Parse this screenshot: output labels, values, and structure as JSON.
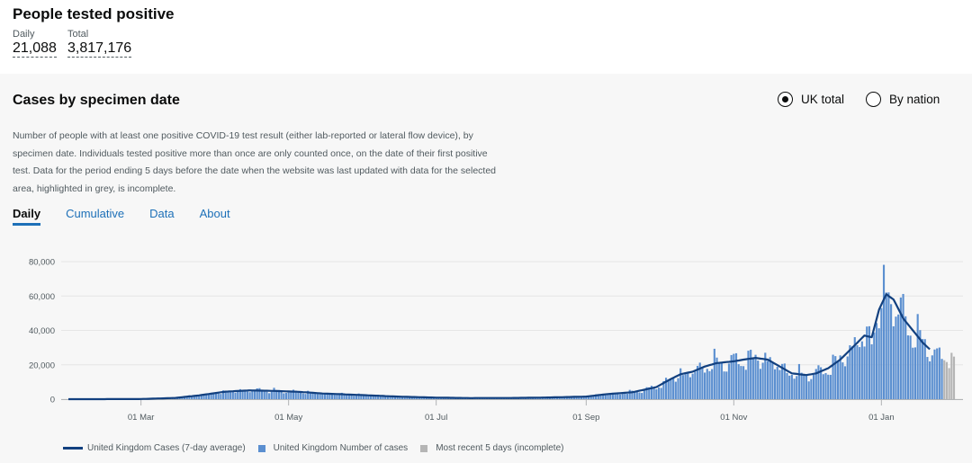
{
  "header": {
    "title": "People tested positive",
    "metrics": [
      {
        "label": "Daily",
        "value": "21,088"
      },
      {
        "label": "Total",
        "value": "3,817,176"
      }
    ]
  },
  "card": {
    "title": "Cases by specimen date",
    "description": "Number of people with at least one positive COVID-19 test result (either lab-reported or lateral flow device), by specimen date. Individuals tested positive more than once are only counted once, on the date of their first positive test. Data for the period ending 5 days before the date when the website was last updated with data for the selected area, highlighted in grey, is incomplete.",
    "radios": [
      {
        "label": "UK total",
        "selected": true
      },
      {
        "label": "By nation",
        "selected": false
      }
    ],
    "tabs": [
      {
        "label": "Daily",
        "active": true
      },
      {
        "label": "Cumulative",
        "active": false
      },
      {
        "label": "Data",
        "active": false
      },
      {
        "label": "About",
        "active": false
      }
    ]
  },
  "colors": {
    "bar": "#5b8fd0",
    "incomplete": "#b5b5b5",
    "line": "#12407f",
    "link": "#1d70b8"
  },
  "chart_data": {
    "type": "bar",
    "x_range": [
      "2020-01-31",
      "2021-01-31"
    ],
    "ylim": [
      0,
      80000
    ],
    "yticks": [
      "0",
      "20,000",
      "40,000",
      "60,000",
      "80,000"
    ],
    "ytick_values": [
      0,
      20000,
      40000,
      60000,
      80000
    ],
    "xticks": [
      {
        "label": "01 Mar",
        "date": "2020-03-01"
      },
      {
        "label": "01 May",
        "date": "2020-05-01"
      },
      {
        "label": "01 Jul",
        "date": "2020-07-01"
      },
      {
        "label": "01 Sep",
        "date": "2020-09-01"
      },
      {
        "label": "01 Nov",
        "date": "2020-11-01"
      },
      {
        "label": "01 Jan",
        "date": "2021-01-01"
      }
    ],
    "grid": true,
    "incomplete_days": 5,
    "series": [
      {
        "name": "United Kingdom Cases (7-day average)",
        "kind": "line"
      },
      {
        "name": "United Kingdom Number of cases",
        "kind": "bar"
      },
      {
        "name": "Most recent 5 days (incomplete)",
        "kind": "bar-incomplete"
      }
    ],
    "anchors": [
      [
        "2020-01-31",
        0
      ],
      [
        "2020-02-29",
        50
      ],
      [
        "2020-03-15",
        700
      ],
      [
        "2020-03-25",
        2200
      ],
      [
        "2020-04-05",
        4400
      ],
      [
        "2020-04-15",
        5100
      ],
      [
        "2020-04-25",
        4800
      ],
      [
        "2020-05-05",
        4300
      ],
      [
        "2020-05-15",
        3300
      ],
      [
        "2020-05-31",
        2400
      ],
      [
        "2020-06-15",
        1500
      ],
      [
        "2020-07-01",
        900
      ],
      [
        "2020-07-15",
        650
      ],
      [
        "2020-08-01",
        700
      ],
      [
        "2020-08-15",
        950
      ],
      [
        "2020-09-01",
        1500
      ],
      [
        "2020-09-10",
        3000
      ],
      [
        "2020-09-20",
        4000
      ],
      [
        "2020-09-30",
        7000
      ],
      [
        "2020-10-05",
        11000
      ],
      [
        "2020-10-10",
        14500
      ],
      [
        "2020-10-15",
        16000
      ],
      [
        "2020-10-20",
        19000
      ],
      [
        "2020-10-25",
        21000
      ],
      [
        "2020-11-01",
        22000
      ],
      [
        "2020-11-05",
        23000
      ],
      [
        "2020-11-10",
        24000
      ],
      [
        "2020-11-15",
        23000
      ],
      [
        "2020-11-20",
        19000
      ],
      [
        "2020-11-25",
        15000
      ],
      [
        "2020-12-01",
        14000
      ],
      [
        "2020-12-05",
        15000
      ],
      [
        "2020-12-10",
        18000
      ],
      [
        "2020-12-15",
        23000
      ],
      [
        "2020-12-20",
        30000
      ],
      [
        "2020-12-25",
        37000
      ],
      [
        "2020-12-28",
        36000
      ],
      [
        "2020-12-31",
        52000
      ],
      [
        "2021-01-03",
        61000
      ],
      [
        "2021-01-06",
        58000
      ],
      [
        "2021-01-10",
        47000
      ],
      [
        "2021-01-14",
        40000
      ],
      [
        "2021-01-18",
        33000
      ],
      [
        "2021-01-21",
        29000
      ],
      [
        "2021-01-26",
        25000
      ],
      [
        "2021-01-31",
        22000
      ]
    ],
    "line_end": "2021-01-21"
  },
  "legend": {
    "items": [
      "United Kingdom Cases (7-day average)",
      "United Kingdom Number of cases",
      "Most recent 5 days (incomplete)"
    ]
  }
}
